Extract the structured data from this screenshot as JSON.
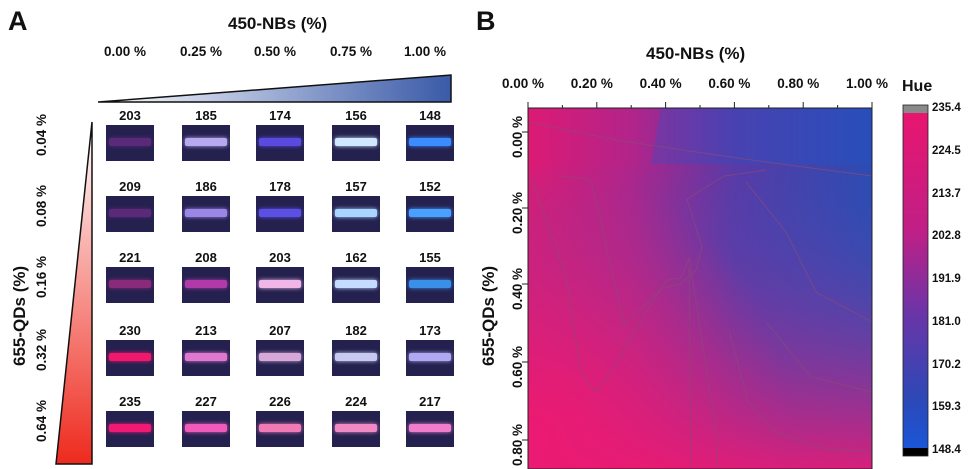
{
  "panels": {
    "a": "A",
    "b": "B"
  },
  "chart_data": [
    {
      "type": "table",
      "x_title": "450-NBs (%)",
      "y_title": "655-QDs (%)",
      "columns": [
        "0.00 %",
        "0.25 %",
        "0.50 %",
        "0.75 %",
        "1.00 %"
      ],
      "rows": [
        "0.04 %",
        "0.08 %",
        "0.16 %",
        "0.32 %",
        "0.64 %"
      ],
      "values": [
        [
          203,
          185,
          174,
          156,
          148
        ],
        [
          209,
          186,
          178,
          157,
          152
        ],
        [
          221,
          208,
          203,
          162,
          155
        ],
        [
          230,
          213,
          207,
          182,
          173
        ],
        [
          235,
          227,
          226,
          224,
          217
        ]
      ],
      "stripe_colors": [
        [
          "#5a2a78",
          "#b8a8f0",
          "#5a4ae0",
          "#cfe8ff",
          "#3a8cff"
        ],
        [
          "#5a2a78",
          "#9b86e8",
          "#5c50e4",
          "#a8d4ff",
          "#4aa0ff"
        ],
        [
          "#8a2a7a",
          "#b03aa8",
          "#f0b6e8",
          "#c4dcff",
          "#3a90e8"
        ],
        [
          "#f0186a",
          "#e078d0",
          "#d8a8d8",
          "#c8c8f0",
          "#b0a8f0"
        ],
        [
          "#f01a74",
          "#f05ab8",
          "#f07ab4",
          "#f08ac4",
          "#f07ccc"
        ]
      ]
    },
    {
      "type": "heatmap",
      "title": "450-NBs (%)",
      "xlabel": "450-NBs (%)",
      "ylabel": "655-QDs (%)",
      "x_ticks": [
        "0.00 %",
        "0.20 %",
        "0.40 %",
        "0.60 %",
        "0.80 %",
        "1.00 %"
      ],
      "y_ticks": [
        "0.00 %",
        "0.20 %",
        "0.40 %",
        "0.60 %",
        "0.80 %"
      ],
      "xlim": [
        0,
        1
      ],
      "ylim": [
        0,
        0.8
      ],
      "colorbar": {
        "label": "Hue",
        "ticks": [
          "235.4",
          "224.5",
          "213.7",
          "202.8",
          "191.9",
          "181.0",
          "170.2",
          "159.3",
          "148.4"
        ],
        "range": [
          148.4,
          235.4
        ]
      }
    }
  ]
}
